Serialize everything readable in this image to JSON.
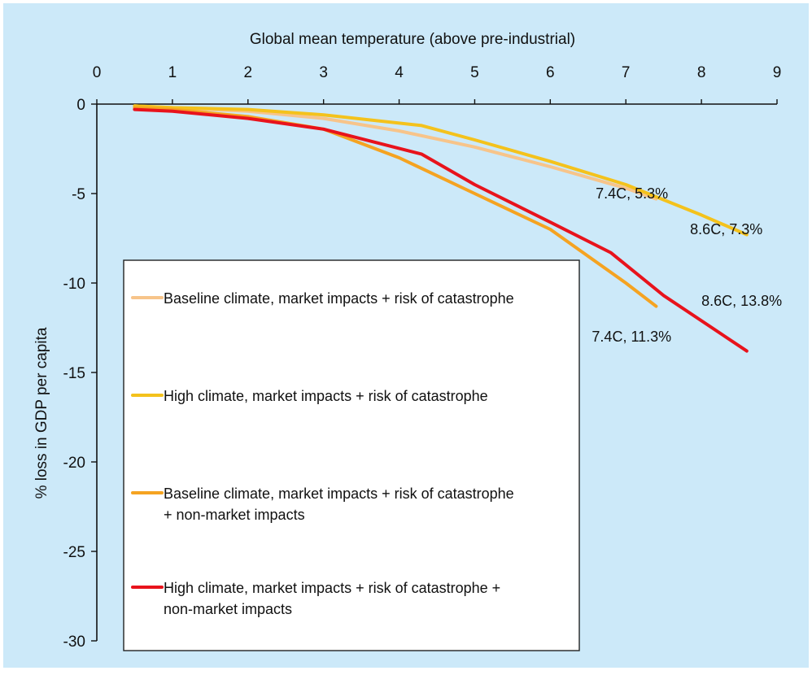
{
  "chart_data": {
    "type": "line",
    "title": "",
    "xlabel": "Global mean temperature (above pre-industrial)",
    "ylabel": "% loss in GDP per capita",
    "xlim": [
      0,
      9
    ],
    "ylim": [
      -30,
      0
    ],
    "x_ticks": [
      "0",
      "1",
      "2",
      "3",
      "4",
      "5",
      "6",
      "7",
      "8",
      "9"
    ],
    "y_ticks": [
      "0",
      "-5",
      "-10",
      "-15",
      "-20",
      "-25",
      "-30"
    ],
    "x_tick_values": [
      0,
      1,
      2,
      3,
      4,
      5,
      6,
      7,
      8,
      9
    ],
    "y_tick_values": [
      0,
      -5,
      -10,
      -15,
      -20,
      -25,
      -30
    ],
    "x_axis_position": "top",
    "grid": false,
    "legend_position": "bottom-left",
    "background_color": "#cce9f9",
    "series": [
      {
        "name": "Baseline climate, market impacts + risk of catastrophe",
        "color": "#f7c48a",
        "legend_lines": [
          "Baseline climate, market impacts + risk of catastrophe"
        ],
        "x": [
          0.5,
          1,
          2,
          3,
          4,
          5,
          6,
          7,
          7.4
        ],
        "y": [
          -0.1,
          -0.2,
          -0.4,
          -0.8,
          -1.5,
          -2.4,
          -3.5,
          -4.7,
          -5.3
        ]
      },
      {
        "name": "High climate, market impacts + risk of catastrophe",
        "color": "#f4c21c",
        "legend_lines": [
          "High climate, market impacts + risk of catastrophe"
        ],
        "x": [
          0.5,
          1,
          2,
          3,
          4.3,
          5,
          6,
          7,
          8,
          8.6
        ],
        "y": [
          -0.1,
          -0.2,
          -0.3,
          -0.6,
          -1.2,
          -2.0,
          -3.2,
          -4.5,
          -6.2,
          -7.3
        ]
      },
      {
        "name": "Baseline climate, market impacts + risk of catastrophe + non-market impacts",
        "color": "#f5a321",
        "legend_lines": [
          "Baseline climate, market impacts + risk of catastrophe",
          "+ non-market impacts"
        ],
        "x": [
          0.5,
          1,
          2,
          3,
          4,
          5,
          6,
          7,
          7.4
        ],
        "y": [
          -0.2,
          -0.3,
          -0.7,
          -1.4,
          -3.0,
          -5.0,
          -7.0,
          -10.0,
          -11.3
        ]
      },
      {
        "name": "High climate, market impacts + risk of catastrophe + non-market impacts",
        "color": "#e8131c",
        "legend_lines": [
          "High climate, market impacts + risk of catastrophe +",
          "non-market impacts"
        ],
        "x": [
          0.5,
          1,
          2,
          3,
          4.3,
          5,
          6,
          6.8,
          7.5,
          8.6
        ],
        "y": [
          -0.3,
          -0.4,
          -0.8,
          -1.4,
          -2.8,
          -4.5,
          -6.6,
          -8.3,
          -10.7,
          -13.8
        ]
      }
    ],
    "annotations": [
      {
        "text": "7.4C, 5.3%",
        "x": 6.6,
        "y": -5.0
      },
      {
        "text": "8.6C, 7.3%",
        "x": 7.85,
        "y": -7.0
      },
      {
        "text": "8.6C, 13.8%",
        "x": 8.0,
        "y": -11.0
      },
      {
        "text": "7.4C, 11.3%",
        "x": 6.55,
        "y": -13.0
      }
    ]
  }
}
